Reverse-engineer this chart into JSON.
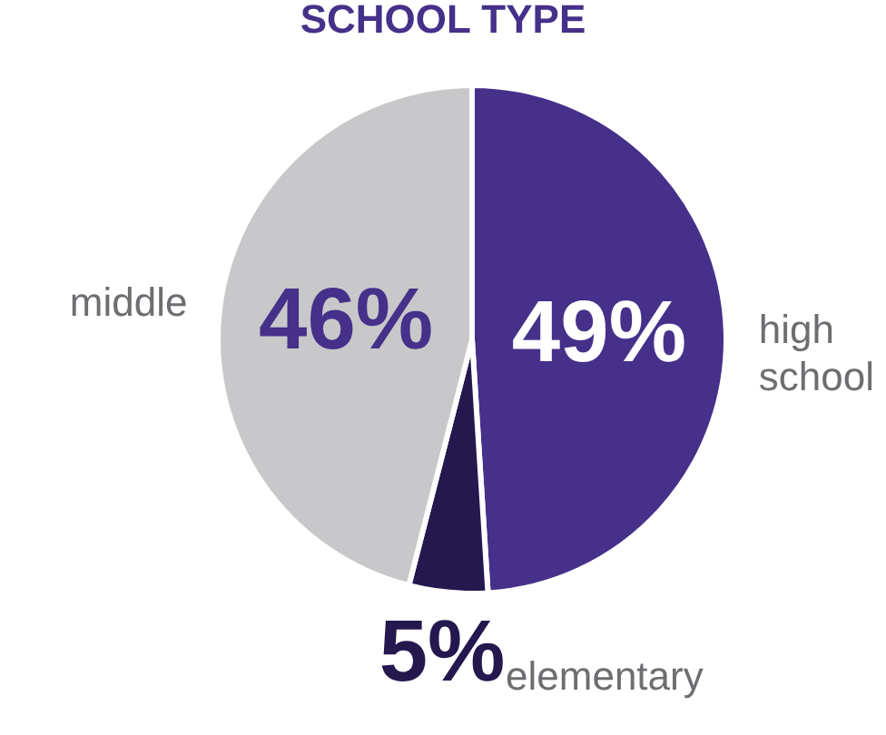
{
  "chart_data": {
    "type": "pie",
    "title": "SCHOOL TYPE",
    "categories": [
      "high school",
      "elementary",
      "middle"
    ],
    "values": [
      49,
      5,
      46
    ],
    "colors": [
      "#45308a",
      "#24184f",
      "#c8c8ca"
    ],
    "value_labels": [
      "49%",
      "5%",
      "46%"
    ]
  }
}
